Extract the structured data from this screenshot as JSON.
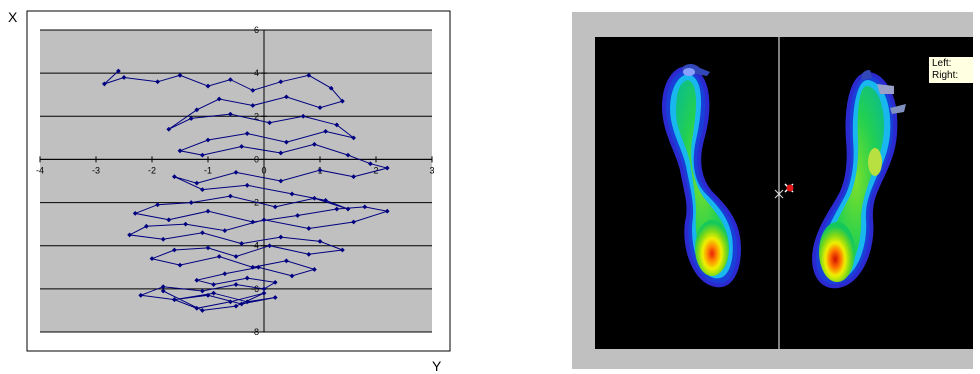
{
  "axis_letters": {
    "x": "X",
    "y": "Y"
  },
  "chart_data": {
    "type": "line",
    "title": "",
    "xlabel": "Y",
    "ylabel": "X",
    "xlim": [
      -4,
      3
    ],
    "ylim": [
      -8,
      6
    ],
    "xticks": [
      -4,
      -3,
      -2,
      -1,
      0,
      1,
      2,
      3
    ],
    "yticks": [
      -8,
      -6,
      -4,
      -2,
      0,
      2,
      4,
      6
    ],
    "tick_labels_x": [
      "-4",
      "-3",
      "-2",
      "-1",
      "0",
      "1",
      "2",
      "3"
    ],
    "tick_labels_y": [
      "-8",
      "-6",
      "-4",
      "-2",
      "0",
      "2",
      "4",
      "6"
    ],
    "grid": "horizontal",
    "legend": "none",
    "colors": {
      "plot_area": "#c0c0c0",
      "series": "#000080",
      "border": "#000000"
    },
    "series": [
      {
        "marker": "diamond",
        "x": [
          -2.6,
          -2.85,
          -2.5,
          -1.9,
          -1.5,
          -1.0,
          -0.6,
          -0.2,
          0.3,
          0.8,
          1.2,
          1.4,
          1.0,
          0.4,
          -0.2,
          -0.8,
          -1.2,
          -1.7,
          -1.3,
          -0.6,
          0.1,
          0.7,
          1.3,
          1.6,
          1.1,
          0.4,
          -0.3,
          -1.0,
          -1.5,
          -1.1,
          -0.4,
          0.3,
          0.9,
          1.5,
          1.9,
          2.2,
          1.6,
          1.0,
          0.3,
          -0.5,
          -1.2,
          -1.6,
          -1.1,
          -0.3,
          0.5,
          1.1,
          1.5,
          0.9,
          0.2,
          -0.6,
          -1.3,
          -1.9,
          -2.3,
          -1.7,
          -1.0,
          -0.2,
          0.6,
          1.3,
          1.8,
          2.2,
          1.6,
          0.8,
          0.0,
          -0.7,
          -1.4,
          -2.1,
          -2.4,
          -1.8,
          -1.1,
          -0.4,
          0.3,
          1.0,
          1.4,
          0.8,
          0.1,
          -0.5,
          -1.0,
          -1.6,
          -2.0,
          -1.5,
          -0.8,
          -0.2,
          0.4,
          0.9,
          0.5,
          -0.1,
          -0.7,
          -1.2,
          -0.9,
          -0.3,
          0.2,
          0.0,
          -0.5,
          -1.1,
          -1.8,
          -2.2,
          -1.6,
          -0.9,
          -0.3,
          0.2,
          -0.4,
          -1.0,
          -1.6,
          -1.2,
          -0.6,
          0.0,
          -0.5,
          -1.1,
          -1.8
        ],
        "y": [
          4.1,
          3.5,
          3.8,
          3.6,
          3.9,
          3.4,
          3.7,
          3.2,
          3.6,
          3.9,
          3.3,
          2.7,
          2.4,
          2.9,
          2.5,
          2.8,
          2.3,
          1.4,
          1.9,
          2.1,
          1.7,
          2.0,
          1.6,
          1.0,
          1.3,
          0.8,
          1.2,
          0.9,
          0.4,
          0.2,
          0.6,
          0.3,
          0.7,
          0.2,
          -0.2,
          -0.4,
          -0.8,
          -0.5,
          -1.0,
          -0.6,
          -1.1,
          -0.8,
          -1.4,
          -1.2,
          -1.6,
          -1.9,
          -2.3,
          -1.8,
          -2.2,
          -1.7,
          -2.0,
          -2.1,
          -2.5,
          -2.8,
          -2.4,
          -2.9,
          -2.6,
          -2.3,
          -2.2,
          -2.4,
          -2.9,
          -3.2,
          -2.8,
          -3.3,
          -3.0,
          -3.1,
          -3.5,
          -3.7,
          -3.4,
          -3.9,
          -3.6,
          -3.8,
          -4.2,
          -4.4,
          -4.0,
          -4.5,
          -4.1,
          -4.2,
          -4.6,
          -4.9,
          -4.5,
          -5.0,
          -4.7,
          -5.1,
          -5.4,
          -5.0,
          -5.3,
          -5.6,
          -5.8,
          -5.5,
          -5.7,
          -6.0,
          -5.8,
          -6.1,
          -5.9,
          -6.3,
          -6.5,
          -6.2,
          -6.6,
          -6.4,
          -6.7,
          -6.3,
          -6.5,
          -6.9,
          -6.6,
          -6.2,
          -6.8,
          -7.0,
          -6.1
        ]
      }
    ]
  },
  "pressure_panel": {
    "tooltip": {
      "left_label": "Left:",
      "right_label": "Right:"
    },
    "colors": {
      "frame": "#c0c0c0",
      "canvas": "#000000",
      "midline": "#ffffff",
      "tooltip_bg": "#ffffe1"
    },
    "markers": {
      "center_icon": "cross-marker-icon",
      "cop_icon": "red-pin-icon"
    }
  }
}
